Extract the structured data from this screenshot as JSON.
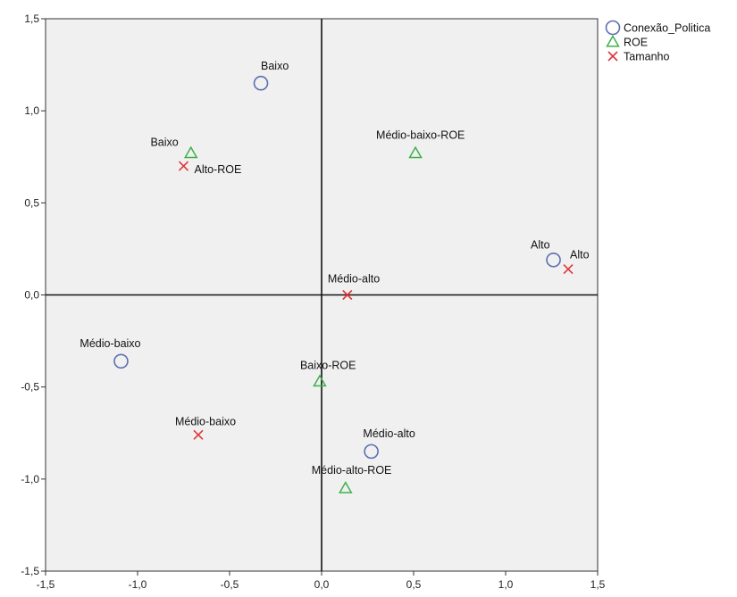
{
  "chart_data": {
    "type": "scatter",
    "xlim": [
      -1.5,
      1.5
    ],
    "ylim": [
      -1.5,
      1.5
    ],
    "x_ticks": [
      "-1,5",
      "-1,0",
      "-0,5",
      "0,0",
      "0,5",
      "1,0",
      "1,5"
    ],
    "y_ticks": [
      "1,5",
      "1,0",
      "0,5",
      "0,0",
      "-0,5",
      "-1,0",
      "-1,5"
    ],
    "grid": false,
    "reference_lines": {
      "x": 0,
      "y": 0
    },
    "legend_position": "top-right-outside",
    "series": [
      {
        "name": "Conexão_Politica",
        "marker": "circle",
        "color": "#5b6fb0",
        "points": [
          {
            "x": -0.33,
            "y": 1.15,
            "label": "Baixo"
          },
          {
            "x": 1.26,
            "y": 0.19,
            "label": "Alto"
          },
          {
            "x": -1.09,
            "y": -0.36,
            "label": "Médio-baixo"
          },
          {
            "x": 0.27,
            "y": -0.85,
            "label": "Médio-alto"
          }
        ]
      },
      {
        "name": "ROE",
        "marker": "triangle",
        "color": "#3fb04a",
        "points": [
          {
            "x": -0.71,
            "y": 0.77,
            "label": "Baixo"
          },
          {
            "x": 0.51,
            "y": 0.77,
            "label": "Médio-baixo-ROE"
          },
          {
            "x": -0.01,
            "y": -0.47,
            "label": "Baixo-ROE"
          },
          {
            "x": 0.13,
            "y": -1.05,
            "label": "Médio-alto-ROE"
          }
        ]
      },
      {
        "name": "Tamanho",
        "marker": "x",
        "color": "#e0353b",
        "points": [
          {
            "x": -0.75,
            "y": 0.7,
            "label": "Alto-ROE"
          },
          {
            "x": 0.14,
            "y": 0.0,
            "label": "Médio-alto"
          },
          {
            "x": 1.34,
            "y": 0.14,
            "label": "Alto"
          },
          {
            "x": -0.67,
            "y": -0.76,
            "label": "Médio-baixo"
          }
        ]
      }
    ]
  }
}
